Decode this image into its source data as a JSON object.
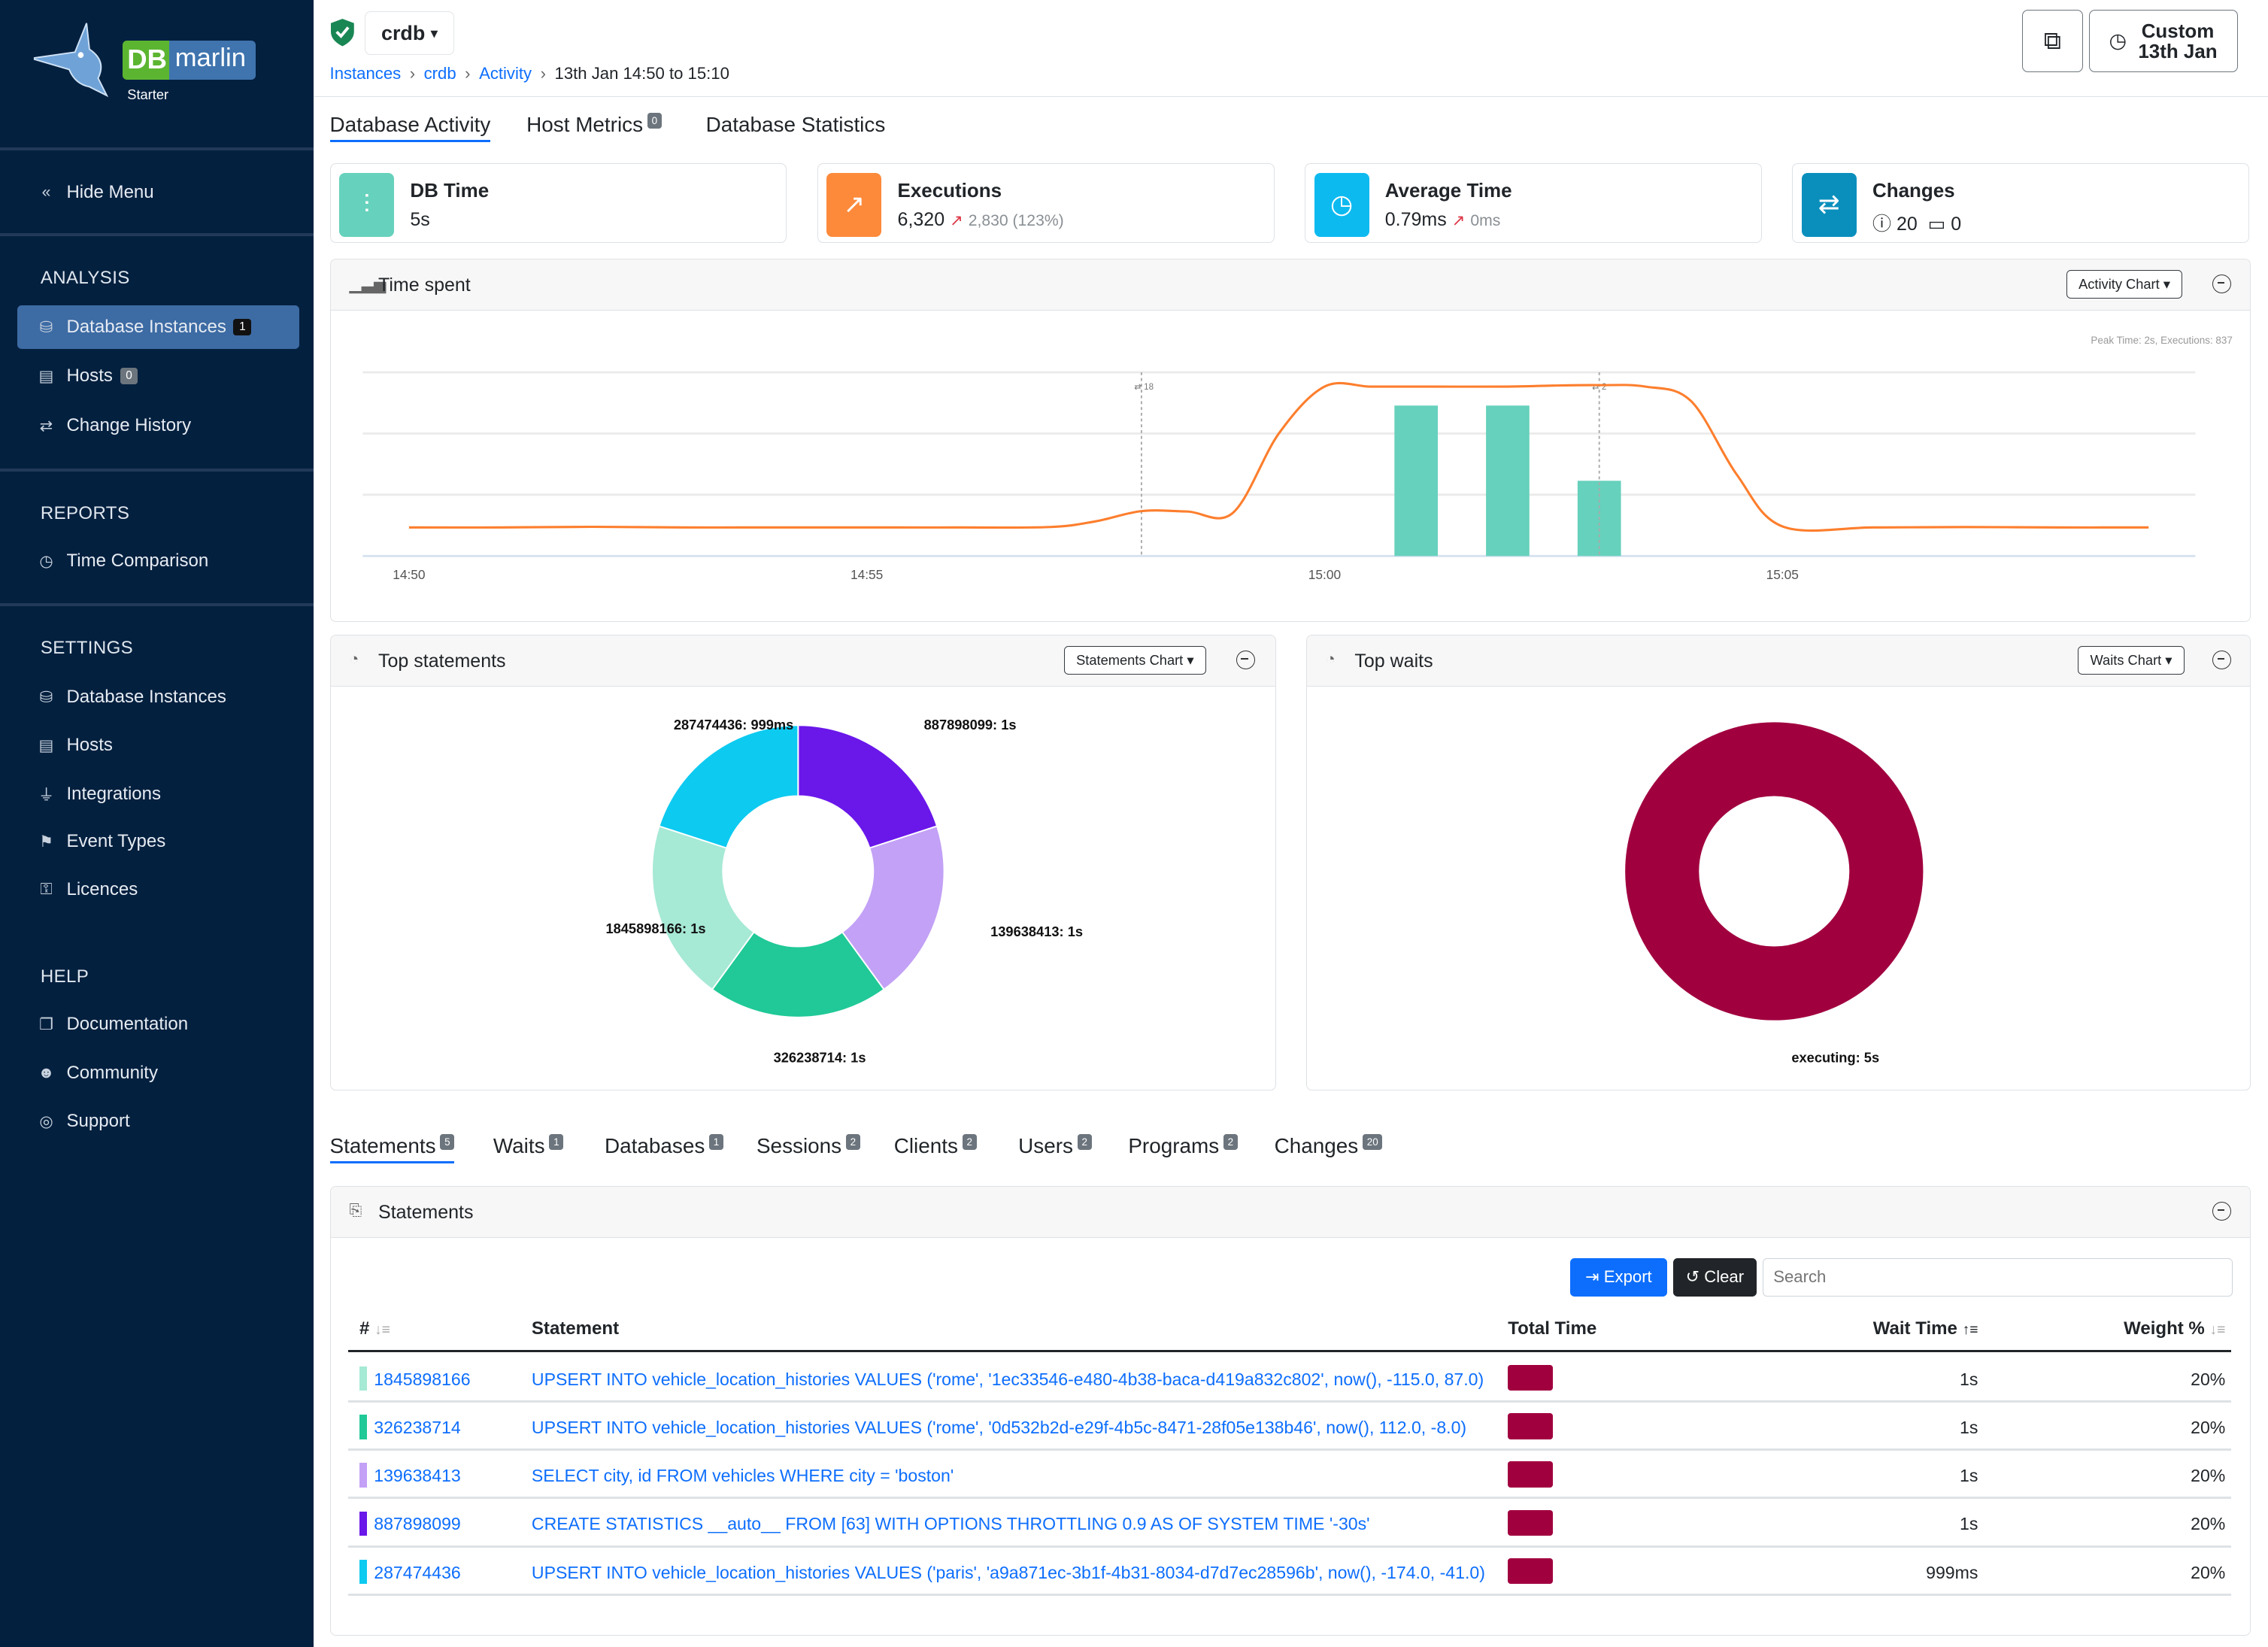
{
  "sidebar": {
    "logo": {
      "text_db": "DB",
      "text_marlin": "marlin",
      "edition": "Starter"
    },
    "hide_menu": "Hide Menu",
    "sections": {
      "analysis": {
        "title": "ANALYSIS",
        "items": [
          {
            "label": "Database Instances",
            "badge": "1",
            "icon": "database-icon",
            "active": true
          },
          {
            "label": "Hosts",
            "badge": "0",
            "icon": "server-icon"
          },
          {
            "label": "Change History",
            "icon": "arrows-exchange-icon"
          }
        ]
      },
      "reports": {
        "title": "REPORTS",
        "items": [
          {
            "label": "Time Comparison",
            "icon": "stopwatch-icon"
          }
        ]
      },
      "settings": {
        "title": "SETTINGS",
        "items": [
          {
            "label": "Database Instances",
            "icon": "database-icon"
          },
          {
            "label": "Hosts",
            "icon": "server-icon"
          },
          {
            "label": "Integrations",
            "icon": "plug-icon"
          },
          {
            "label": "Event Types",
            "icon": "event-icon"
          },
          {
            "label": "Licences",
            "icon": "key-icon"
          }
        ]
      },
      "help": {
        "title": "HELP",
        "items": [
          {
            "label": "Documentation",
            "icon": "book-icon"
          },
          {
            "label": "Community",
            "icon": "people-icon"
          },
          {
            "label": "Support",
            "icon": "globe-icon"
          }
        ]
      }
    }
  },
  "header": {
    "instance": "crdb",
    "breadcrumb": [
      "Instances",
      "crdb",
      "Activity"
    ],
    "breadcrumb_current": "13th Jan 14:50 to 15:10",
    "range_line1": "Custom",
    "range_line2": "13th Jan"
  },
  "tabs": [
    {
      "label": "Database Activity",
      "active": true
    },
    {
      "label": "Host Metrics",
      "badge": "0"
    },
    {
      "label": "Database Statistics"
    }
  ],
  "kpis": {
    "db_time": {
      "title": "DB Time",
      "value": "5s",
      "color": "#66d1bc"
    },
    "executions": {
      "title": "Executions",
      "value": "6,320",
      "delta": "2,830 (123%)",
      "color": "#fd8a3b"
    },
    "average_time": {
      "title": "Average Time",
      "value": "0.79ms",
      "delta": "0ms",
      "color": "#0dbaf0"
    },
    "changes": {
      "title": "Changes",
      "info_count": "20",
      "event_count": "0",
      "color": "#0a8fbd"
    }
  },
  "time_spent": {
    "title": "Time spent",
    "dropdown": "Activity Chart",
    "peak": "Peak Time: 2s, Executions: 837"
  },
  "chart_data": [
    {
      "type": "bar+line",
      "title": "Time spent",
      "x_ticks": [
        "14:50",
        "14:55",
        "15:00",
        "15:05"
      ],
      "xlim": [
        "14:50",
        "15:10"
      ],
      "grid": true,
      "bars": {
        "color": "#66d1bc",
        "x": [
          "15:01",
          "15:02",
          "15:03"
        ],
        "values_seconds": [
          2,
          2,
          1
        ]
      },
      "line": {
        "color": "#fd7e2d",
        "unit": "executions",
        "ylim": [
          0,
          900
        ],
        "points": [
          [
            "14:50:00",
            140
          ],
          [
            "14:51:00",
            140
          ],
          [
            "14:52:00",
            143
          ],
          [
            "14:53:00",
            140
          ],
          [
            "14:54:00",
            140
          ],
          [
            "14:55:00",
            140
          ],
          [
            "14:56:00",
            140
          ],
          [
            "14:57:00",
            142
          ],
          [
            "14:57:30",
            170
          ],
          [
            "14:58:00",
            220
          ],
          [
            "14:58:30",
            218
          ],
          [
            "14:59:00",
            212
          ],
          [
            "14:59:30",
            600
          ],
          [
            "15:00:00",
            830
          ],
          [
            "15:00:30",
            830
          ],
          [
            "15:01:00",
            830
          ],
          [
            "15:02:00",
            830
          ],
          [
            "15:02:30",
            835
          ],
          [
            "15:03:00",
            837
          ],
          [
            "15:03:30",
            830
          ],
          [
            "15:04:00",
            760
          ],
          [
            "15:04:30",
            400
          ],
          [
            "15:05:00",
            145
          ],
          [
            "15:06:00",
            140
          ],
          [
            "15:07:00",
            142
          ],
          [
            "15:08:00",
            140
          ],
          [
            "15:09:00",
            140
          ]
        ]
      },
      "change_markers": [
        {
          "x": "14:58",
          "label": "18"
        },
        {
          "x": "15:03",
          "label": "2"
        }
      ]
    },
    {
      "type": "pie",
      "title": "Top statements",
      "donut": true,
      "slices": [
        {
          "label": "887898099: 1s",
          "value": 20,
          "color": "#6a17ea"
        },
        {
          "label": "139638413: 1s",
          "value": 20,
          "color": "#c3a1f6"
        },
        {
          "label": "326238714: 1s",
          "value": 20,
          "color": "#20c997"
        },
        {
          "label": "1845898166: 1s",
          "value": 20,
          "color": "#a6e9d5"
        },
        {
          "label": "287474436: 999ms",
          "value": 20,
          "color": "#0dcaf0"
        }
      ]
    },
    {
      "type": "pie",
      "title": "Top waits",
      "donut": true,
      "slices": [
        {
          "label": "executing: 5s",
          "value": 100,
          "color": "#a1003f"
        }
      ]
    }
  ],
  "top_statements": {
    "title": "Top statements",
    "dropdown": "Statements Chart"
  },
  "top_waits": {
    "title": "Top waits",
    "dropdown": "Waits Chart"
  },
  "bottom_tabs": [
    {
      "label": "Statements",
      "badge": "5",
      "active": true
    },
    {
      "label": "Waits",
      "badge": "1"
    },
    {
      "label": "Databases",
      "badge": "1"
    },
    {
      "label": "Sessions",
      "badge": "2"
    },
    {
      "label": "Clients",
      "badge": "2"
    },
    {
      "label": "Users",
      "badge": "2"
    },
    {
      "label": "Programs",
      "badge": "2"
    },
    {
      "label": "Changes",
      "badge": "20"
    }
  ],
  "statements": {
    "title": "Statements",
    "export": "Export",
    "clear": "Clear",
    "search_placeholder": "Search",
    "columns": {
      "id": "#",
      "statement": "Statement",
      "total_time": "Total Time",
      "wait_time": "Wait Time",
      "weight": "Weight %"
    },
    "rows": [
      {
        "id": "1845898166",
        "color": "#a6e9d5",
        "statement": "UPSERT INTO vehicle_location_histories VALUES ('rome', '1ec33546-e480-4b38-baca-d419a832c802', now(), -115.0, 87.0)",
        "wait": "1s",
        "weight": "20%"
      },
      {
        "id": "326238714",
        "color": "#20c997",
        "statement": "UPSERT INTO vehicle_location_histories VALUES ('rome', '0d532b2d-e29f-4b5c-8471-28f05e138b46', now(), 112.0, -8.0)",
        "wait": "1s",
        "weight": "20%"
      },
      {
        "id": "139638413",
        "color": "#c3a1f6",
        "statement": "SELECT city, id FROM vehicles WHERE city = 'boston'",
        "wait": "1s",
        "weight": "20%"
      },
      {
        "id": "887898099",
        "color": "#6a17ea",
        "statement": "CREATE STATISTICS __auto__ FROM [63] WITH OPTIONS THROTTLING 0.9 AS OF SYSTEM TIME '-30s'",
        "wait": "1s",
        "weight": "20%"
      },
      {
        "id": "287474436",
        "color": "#0dcaf0",
        "statement": "UPSERT INTO vehicle_location_histories VALUES ('paris', 'a9a871ec-3b1f-4b31-8034-d7d7ec28596b', now(), -174.0, -41.0)",
        "wait": "999ms",
        "weight": "20%"
      }
    ]
  }
}
